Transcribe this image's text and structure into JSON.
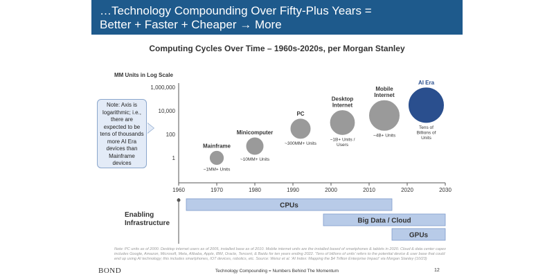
{
  "header": {
    "line1": "…Technology Compounding Over Fifty-Plus Years =",
    "line2": "Better + Faster + Cheaper → More",
    "color": "#1e5a8c"
  },
  "note": "Note: Axis is logarithmic; i.e., there are expected to be tens of thousands more AI Era devices than Mainframe devices",
  "enabling_label": "Enabling Infrastructure",
  "footnote": "Note: PC units as of 2000. Desktop internet users as of 2005, installed base as of 2010. Mobile internet units are the installed based of smartphones & tablets in 2020. Cloud & data center capex includes Google, Amazon, Microsoft, Meta, Alibaba, Apple, IBM, Oracle, Tencent, & Baidu for ten years ending 2022. 'Tens of billions of units' refers to the potential device & user base that could end up using AI technology; this includes smartphones, IOT devices, robotics, etc. Source: Weisz et al. 'AI Index: Mapping the $4 Trillion Enterprise Impact' via Morgan Stanley (10/23)",
  "footer": {
    "logo": "BOND",
    "center": "Technology Compounding = Numbers Behind The Momentum",
    "page": "12"
  },
  "chart_data": {
    "type": "bubble",
    "title": "Computing Cycles Over Time – 1960s-2020s, per Morgan Stanley",
    "ylabel": "MM Units in Log Scale",
    "y_scale": "log",
    "y_ticks": [
      "1",
      "100",
      "10,000",
      "1,000,000"
    ],
    "x_ticks": [
      "1960",
      "1970",
      "1980",
      "1990",
      "2000",
      "2010",
      "2020",
      "2030"
    ],
    "xlim": [
      1960,
      2030
    ],
    "points": [
      {
        "name": "Mainframe",
        "x": 1970,
        "y_units_mm": 1,
        "size": 1,
        "units_label": "~1MM+ Units",
        "color": "#9a9a9a",
        "name_color": "#333333"
      },
      {
        "name": "Minicomputer",
        "x": 1980,
        "y_units_mm": 10,
        "size": 1.5,
        "units_label": "~10MM+ Units",
        "color": "#9a9a9a",
        "name_color": "#333333"
      },
      {
        "name": "PC",
        "x": 1992,
        "y_units_mm": 300,
        "size": 2,
        "units_label": "~300MM+ Units",
        "color": "#9a9a9a",
        "name_color": "#333333"
      },
      {
        "name": "Desktop Internet",
        "x": 2003,
        "y_units_mm": 1000,
        "size": 3,
        "units_label": "~1B+ Units / Users",
        "color": "#9a9a9a",
        "name_color": "#333333"
      },
      {
        "name": "Mobile Internet",
        "x": 2014,
        "y_units_mm": 4000,
        "size": 4.5,
        "units_label": "~4B+ Units",
        "color": "#9a9a9a",
        "name_color": "#333333"
      },
      {
        "name": "AI Era",
        "x": 2025,
        "y_units_mm": 30000,
        "size": 6,
        "units_label": "Tens of Billions of Units",
        "color": "#2a4f8e",
        "name_color": "#2a4f8e"
      }
    ],
    "infrastructure_bars": [
      {
        "label": "CPUs",
        "start": 1962,
        "end": 2016
      },
      {
        "label": "Big Data / Cloud",
        "start": 1998,
        "end": 2030
      },
      {
        "label": "GPUs",
        "start": 2016,
        "end": 2030
      }
    ],
    "bar_color": "#b8cbe8"
  }
}
